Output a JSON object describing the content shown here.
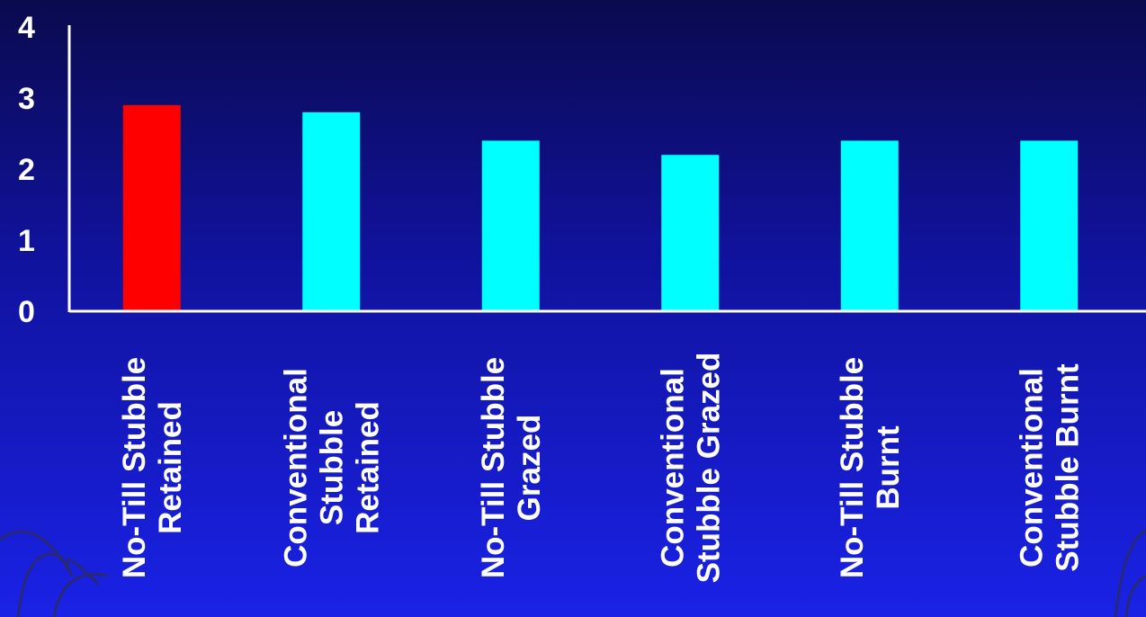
{
  "chart_data": {
    "type": "bar",
    "categories": [
      [
        "No-Till Stubble",
        "Retained"
      ],
      [
        "Conventional",
        "Stubble",
        "Retained"
      ],
      [
        "No-Till Stubble",
        "Grazed"
      ],
      [
        "Conventional",
        "Stubble Grazed"
      ],
      [
        "No-Till Stubble",
        "Burnt"
      ],
      [
        "Conventional",
        "Stubble Burnt"
      ]
    ],
    "values": [
      2.9,
      2.8,
      2.4,
      2.2,
      2.4,
      2.4
    ],
    "ylim": [
      0,
      4
    ],
    "yticks": [
      "0",
      "1",
      "2",
      "3",
      "4"
    ],
    "title": "",
    "xlabel": "",
    "ylabel": "",
    "grid": false,
    "colors": {
      "highlight": "#ff0000",
      "bar": "#00ffff",
      "axis": "#ffffff",
      "text": "#ffffff"
    }
  }
}
